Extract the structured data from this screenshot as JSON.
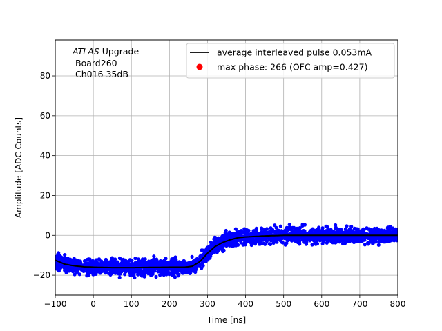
{
  "chart_data": {
    "type": "scatter",
    "xlabel": "Time [ns]",
    "ylabel": "Amplitude [ADC Counts]",
    "xlim": [
      -100,
      800
    ],
    "ylim": [
      -30,
      98
    ],
    "x_ticks": [
      -100,
      0,
      100,
      200,
      300,
      400,
      500,
      600,
      700,
      800
    ],
    "y_ticks": [
      -20,
      0,
      20,
      40,
      60,
      80
    ],
    "grid": true,
    "legend_placement": "top-right",
    "annotation": {
      "italic": "ATLAS",
      "rest": " Upgrade",
      "line2": "Board260",
      "line3": "Ch016 35dB"
    },
    "series": [
      {
        "name": "average interleaved pulse 0.053mA",
        "kind": "line",
        "color": "#000000",
        "x": [
          -100,
          -75,
          -50,
          -25,
          0,
          50,
          100,
          150,
          200,
          240,
          260,
          280,
          300,
          320,
          340,
          360,
          380,
          400,
          450,
          500,
          600,
          700,
          800
        ],
        "y": [
          -12.5,
          -14.5,
          -15.3,
          -15.8,
          -16,
          -16.2,
          -16.2,
          -16.1,
          -16,
          -16,
          -15.5,
          -13.2,
          -9,
          -5.6,
          -3.6,
          -2.2,
          -1.2,
          -0.8,
          -0.3,
          0,
          0,
          0,
          0
        ]
      },
      {
        "name": "samples",
        "kind": "scatter",
        "color": "#0000ff",
        "spread": 3.5
      },
      {
        "name": "max phase: 266 (OFC amp=0.427)",
        "kind": "marker",
        "color": "#ff0000"
      }
    ]
  }
}
